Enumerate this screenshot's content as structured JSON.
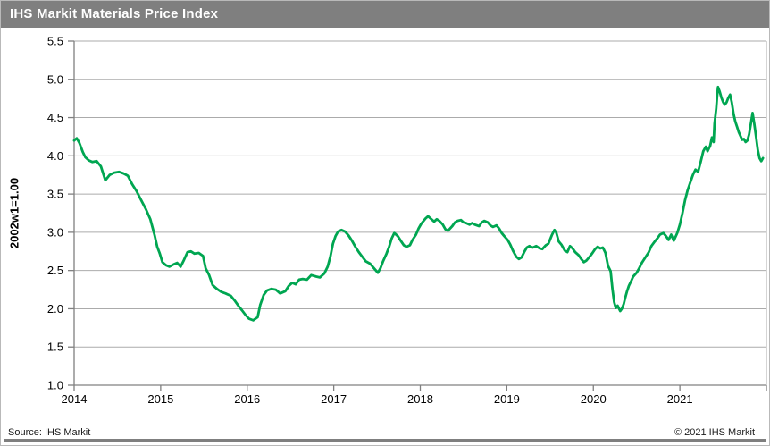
{
  "header": {
    "title": "IHS Markit Materials Price Index"
  },
  "footer": {
    "source": "Source: IHS Markit",
    "copyright": "© 2021  IHS Markit"
  },
  "colors": {
    "header_bar": "#7F7F7F",
    "footer_bar": "#7F7F7F",
    "line": "#00A651",
    "grid": "#ABABAB",
    "axis": "#808080",
    "text": "#000000"
  },
  "chart_data": {
    "type": "line",
    "title": "IHS Markit Materials Price Index",
    "xlabel": "",
    "ylabel": "2002w1=1.00",
    "ylim": [
      1.0,
      5.5
    ],
    "xlim": [
      2014,
      2022
    ],
    "y_tick_step": 0.5,
    "y_tick_labels": [
      "1.0",
      "1.5",
      "2.0",
      "2.5",
      "3.0",
      "3.5",
      "4.0",
      "4.5",
      "5.0",
      "5.5"
    ],
    "x_tick_labels": [
      "2014",
      "2015",
      "2016",
      "2017",
      "2018",
      "2019",
      "2020",
      "2021"
    ],
    "grid": "horizontal",
    "legend": "none",
    "series": [
      {
        "name": "Materials Price Index",
        "color": "#00A651",
        "points": [
          [
            2014.0,
            4.2
          ],
          [
            2014.03,
            4.23
          ],
          [
            2014.06,
            4.17
          ],
          [
            2014.1,
            4.05
          ],
          [
            2014.13,
            3.98
          ],
          [
            2014.17,
            3.94
          ],
          [
            2014.21,
            3.92
          ],
          [
            2014.26,
            3.93
          ],
          [
            2014.31,
            3.86
          ],
          [
            2014.36,
            3.68
          ],
          [
            2014.41,
            3.75
          ],
          [
            2014.46,
            3.78
          ],
          [
            2014.52,
            3.79
          ],
          [
            2014.57,
            3.77
          ],
          [
            2014.62,
            3.74
          ],
          [
            2014.67,
            3.63
          ],
          [
            2014.72,
            3.54
          ],
          [
            2014.77,
            3.43
          ],
          [
            2014.83,
            3.3
          ],
          [
            2014.88,
            3.17
          ],
          [
            2014.93,
            2.96
          ],
          [
            2014.96,
            2.81
          ],
          [
            2014.99,
            2.72
          ],
          [
            2015.02,
            2.61
          ],
          [
            2015.06,
            2.57
          ],
          [
            2015.1,
            2.55
          ],
          [
            2015.15,
            2.58
          ],
          [
            2015.19,
            2.6
          ],
          [
            2015.23,
            2.55
          ],
          [
            2015.27,
            2.64
          ],
          [
            2015.31,
            2.74
          ],
          [
            2015.35,
            2.75
          ],
          [
            2015.39,
            2.72
          ],
          [
            2015.44,
            2.73
          ],
          [
            2015.49,
            2.69
          ],
          [
            2015.52,
            2.53
          ],
          [
            2015.56,
            2.44
          ],
          [
            2015.6,
            2.31
          ],
          [
            2015.65,
            2.26
          ],
          [
            2015.7,
            2.22
          ],
          [
            2015.75,
            2.2
          ],
          [
            2015.81,
            2.17
          ],
          [
            2015.86,
            2.1
          ],
          [
            2015.91,
            2.02
          ],
          [
            2015.94,
            1.98
          ],
          [
            2015.98,
            1.92
          ],
          [
            2016.02,
            1.87
          ],
          [
            2016.07,
            1.85
          ],
          [
            2016.12,
            1.89
          ],
          [
            2016.15,
            2.05
          ],
          [
            2016.19,
            2.18
          ],
          [
            2016.23,
            2.24
          ],
          [
            2016.28,
            2.26
          ],
          [
            2016.33,
            2.25
          ],
          [
            2016.38,
            2.2
          ],
          [
            2016.44,
            2.23
          ],
          [
            2016.48,
            2.3
          ],
          [
            2016.52,
            2.34
          ],
          [
            2016.56,
            2.32
          ],
          [
            2016.6,
            2.38
          ],
          [
            2016.64,
            2.39
          ],
          [
            2016.69,
            2.38
          ],
          [
            2016.74,
            2.44
          ],
          [
            2016.8,
            2.42
          ],
          [
            2016.84,
            2.41
          ],
          [
            2016.89,
            2.46
          ],
          [
            2016.93,
            2.55
          ],
          [
            2016.96,
            2.68
          ],
          [
            2016.99,
            2.85
          ],
          [
            2017.02,
            2.95
          ],
          [
            2017.05,
            3.01
          ],
          [
            2017.09,
            3.03
          ],
          [
            2017.13,
            3.01
          ],
          [
            2017.17,
            2.96
          ],
          [
            2017.21,
            2.89
          ],
          [
            2017.25,
            2.81
          ],
          [
            2017.29,
            2.74
          ],
          [
            2017.33,
            2.68
          ],
          [
            2017.37,
            2.62
          ],
          [
            2017.42,
            2.59
          ],
          [
            2017.45,
            2.55
          ],
          [
            2017.48,
            2.51
          ],
          [
            2017.51,
            2.47
          ],
          [
            2017.54,
            2.53
          ],
          [
            2017.57,
            2.62
          ],
          [
            2017.61,
            2.72
          ],
          [
            2017.64,
            2.81
          ],
          [
            2017.67,
            2.92
          ],
          [
            2017.7,
            2.99
          ],
          [
            2017.74,
            2.95
          ],
          [
            2017.78,
            2.88
          ],
          [
            2017.81,
            2.83
          ],
          [
            2017.84,
            2.81
          ],
          [
            2017.88,
            2.83
          ],
          [
            2017.91,
            2.9
          ],
          [
            2017.95,
            2.97
          ],
          [
            2017.98,
            3.05
          ],
          [
            2018.01,
            3.11
          ],
          [
            2018.06,
            3.18
          ],
          [
            2018.09,
            3.21
          ],
          [
            2018.12,
            3.18
          ],
          [
            2018.16,
            3.14
          ],
          [
            2018.19,
            3.17
          ],
          [
            2018.22,
            3.15
          ],
          [
            2018.26,
            3.1
          ],
          [
            2018.29,
            3.04
          ],
          [
            2018.32,
            3.02
          ],
          [
            2018.37,
            3.08
          ],
          [
            2018.4,
            3.13
          ],
          [
            2018.43,
            3.15
          ],
          [
            2018.47,
            3.16
          ],
          [
            2018.5,
            3.13
          ],
          [
            2018.53,
            3.12
          ],
          [
            2018.57,
            3.1
          ],
          [
            2018.6,
            3.12
          ],
          [
            2018.63,
            3.1
          ],
          [
            2018.68,
            3.08
          ],
          [
            2018.71,
            3.13
          ],
          [
            2018.74,
            3.15
          ],
          [
            2018.78,
            3.13
          ],
          [
            2018.81,
            3.09
          ],
          [
            2018.84,
            3.07
          ],
          [
            2018.88,
            3.09
          ],
          [
            2018.91,
            3.05
          ],
          [
            2018.94,
            2.99
          ],
          [
            2018.97,
            2.95
          ],
          [
            2019.01,
            2.9
          ],
          [
            2019.04,
            2.84
          ],
          [
            2019.07,
            2.76
          ],
          [
            2019.11,
            2.68
          ],
          [
            2019.14,
            2.65
          ],
          [
            2019.17,
            2.67
          ],
          [
            2019.2,
            2.74
          ],
          [
            2019.23,
            2.8
          ],
          [
            2019.26,
            2.82
          ],
          [
            2019.3,
            2.8
          ],
          [
            2019.34,
            2.82
          ],
          [
            2019.38,
            2.79
          ],
          [
            2019.41,
            2.78
          ],
          [
            2019.45,
            2.83
          ],
          [
            2019.48,
            2.85
          ],
          [
            2019.52,
            2.96
          ],
          [
            2019.55,
            3.03
          ],
          [
            2019.57,
            3.0
          ],
          [
            2019.6,
            2.88
          ],
          [
            2019.63,
            2.84
          ],
          [
            2019.67,
            2.76
          ],
          [
            2019.7,
            2.74
          ],
          [
            2019.73,
            2.82
          ],
          [
            2019.76,
            2.79
          ],
          [
            2019.79,
            2.74
          ],
          [
            2019.83,
            2.7
          ],
          [
            2019.86,
            2.65
          ],
          [
            2019.89,
            2.61
          ],
          [
            2019.92,
            2.63
          ],
          [
            2019.95,
            2.67
          ],
          [
            2019.99,
            2.73
          ],
          [
            2020.02,
            2.78
          ],
          [
            2020.05,
            2.81
          ],
          [
            2020.08,
            2.79
          ],
          [
            2020.11,
            2.8
          ],
          [
            2020.14,
            2.73
          ],
          [
            2020.17,
            2.56
          ],
          [
            2020.2,
            2.49
          ],
          [
            2020.22,
            2.26
          ],
          [
            2020.24,
            2.09
          ],
          [
            2020.26,
            2.01
          ],
          [
            2020.28,
            2.04
          ],
          [
            2020.31,
            1.97
          ],
          [
            2020.33,
            2.0
          ],
          [
            2020.35,
            2.06
          ],
          [
            2020.37,
            2.15
          ],
          [
            2020.39,
            2.23
          ],
          [
            2020.41,
            2.3
          ],
          [
            2020.44,
            2.37
          ],
          [
            2020.46,
            2.42
          ],
          [
            2020.5,
            2.47
          ],
          [
            2020.53,
            2.53
          ],
          [
            2020.56,
            2.6
          ],
          [
            2020.6,
            2.67
          ],
          [
            2020.64,
            2.74
          ],
          [
            2020.67,
            2.82
          ],
          [
            2020.71,
            2.88
          ],
          [
            2020.74,
            2.92
          ],
          [
            2020.77,
            2.97
          ],
          [
            2020.81,
            2.99
          ],
          [
            2020.84,
            2.95
          ],
          [
            2020.87,
            2.9
          ],
          [
            2020.9,
            2.97
          ],
          [
            2020.93,
            2.89
          ],
          [
            2020.97,
            2.99
          ],
          [
            2021.0,
            3.1
          ],
          [
            2021.03,
            3.25
          ],
          [
            2021.06,
            3.42
          ],
          [
            2021.09,
            3.55
          ],
          [
            2021.12,
            3.65
          ],
          [
            2021.15,
            3.75
          ],
          [
            2021.18,
            3.82
          ],
          [
            2021.21,
            3.79
          ],
          [
            2021.24,
            3.92
          ],
          [
            2021.27,
            4.06
          ],
          [
            2021.3,
            4.12
          ],
          [
            2021.32,
            4.06
          ],
          [
            2021.35,
            4.13
          ],
          [
            2021.37,
            4.24
          ],
          [
            2021.39,
            4.18
          ],
          [
            2021.4,
            4.42
          ],
          [
            2021.42,
            4.62
          ],
          [
            2021.43,
            4.78
          ],
          [
            2021.44,
            4.9
          ],
          [
            2021.46,
            4.84
          ],
          [
            2021.48,
            4.76
          ],
          [
            2021.5,
            4.7
          ],
          [
            2021.52,
            4.67
          ],
          [
            2021.54,
            4.7
          ],
          [
            2021.56,
            4.76
          ],
          [
            2021.58,
            4.8
          ],
          [
            2021.6,
            4.7
          ],
          [
            2021.62,
            4.55
          ],
          [
            2021.64,
            4.45
          ],
          [
            2021.66,
            4.38
          ],
          [
            2021.68,
            4.31
          ],
          [
            2021.7,
            4.26
          ],
          [
            2021.72,
            4.21
          ],
          [
            2021.74,
            4.22
          ],
          [
            2021.76,
            4.18
          ],
          [
            2021.78,
            4.2
          ],
          [
            2021.8,
            4.28
          ],
          [
            2021.82,
            4.42
          ],
          [
            2021.84,
            4.56
          ],
          [
            2021.86,
            4.42
          ],
          [
            2021.88,
            4.25
          ],
          [
            2021.9,
            4.08
          ],
          [
            2021.92,
            3.97
          ],
          [
            2021.94,
            3.93
          ],
          [
            2021.96,
            3.97
          ]
        ]
      }
    ]
  }
}
